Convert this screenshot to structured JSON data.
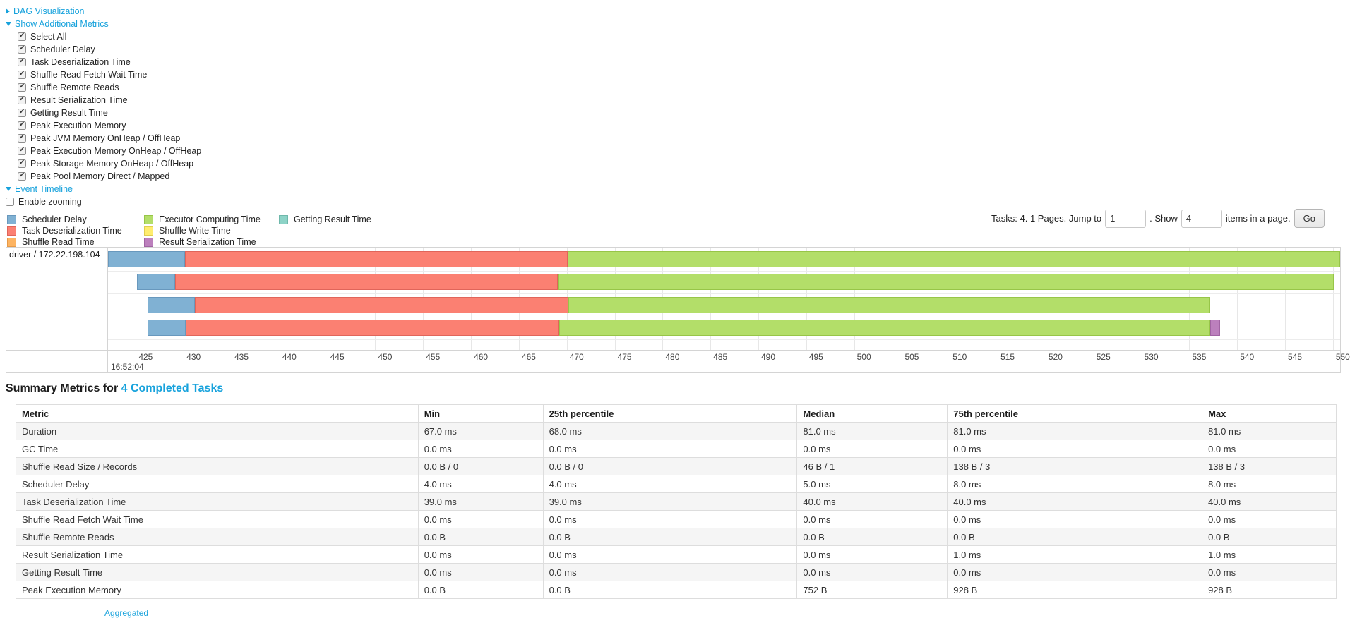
{
  "colors": {
    "link": "#17a2dc",
    "grid": "#e7e7e7",
    "chart_border": "#d4d4d4",
    "table_border": "#dddddd",
    "row_stripe": "#f5f5f5"
  },
  "sections": {
    "dag": {
      "label": "DAG Visualization",
      "state": "collapsed"
    },
    "metrics": {
      "label": "Show Additional Metrics",
      "state": "expanded"
    },
    "timeline": {
      "label": "Event Timeline",
      "state": "expanded"
    }
  },
  "metrics_checkboxes": [
    {
      "label": "Select All",
      "checked": true
    },
    {
      "label": "Scheduler Delay",
      "checked": true
    },
    {
      "label": "Task Deserialization Time",
      "checked": true
    },
    {
      "label": "Shuffle Read Fetch Wait Time",
      "checked": true
    },
    {
      "label": "Shuffle Remote Reads",
      "checked": true
    },
    {
      "label": "Result Serialization Time",
      "checked": true
    },
    {
      "label": "Getting Result Time",
      "checked": true
    },
    {
      "label": "Peak Execution Memory",
      "checked": true
    },
    {
      "label": "Peak JVM Memory OnHeap / OffHeap",
      "checked": true
    },
    {
      "label": "Peak Execution Memory OnHeap / OffHeap",
      "checked": true
    },
    {
      "label": "Peak Storage Memory OnHeap / OffHeap",
      "checked": true
    },
    {
      "label": "Peak Pool Memory Direct / Mapped",
      "checked": true
    }
  ],
  "enable_zooming": {
    "label": "Enable zooming",
    "checked": false
  },
  "legend": [
    {
      "type": "scheduler_delay",
      "label": "Scheduler Delay"
    },
    {
      "type": "task_deserialization",
      "label": "Task Deserialization Time"
    },
    {
      "type": "shuffle_read",
      "label": "Shuffle Read Time"
    },
    {
      "type": "executor_computing",
      "label": "Executor Computing Time"
    },
    {
      "type": "shuffle_write",
      "label": "Shuffle Write Time"
    },
    {
      "type": "result_serialization",
      "label": "Result Serialization Time"
    },
    {
      "type": "getting_result",
      "label": "Getting Result Time"
    }
  ],
  "pagination": {
    "tasks_text": "Tasks: 4. 1 Pages. Jump to",
    "jump_value": "1",
    "show_text": ". Show",
    "show_value": "4",
    "suffix_text": "items in a page.",
    "go_label": "Go"
  },
  "chart_data": {
    "type": "timeline",
    "group_label": "driver / 172.22.198.104",
    "x_axis": {
      "t0": 422.1,
      "t1": 550.75,
      "tick_start": 425,
      "tick_end": 550,
      "tick_step": 5,
      "unit": "ms",
      "major_label": "16:52:04"
    },
    "segment_colors": {
      "scheduler_delay": {
        "fill": "#80B1D3",
        "border": "#6898BD"
      },
      "task_deserialization": {
        "fill": "#FB8072",
        "border": "#E0655A"
      },
      "shuffle_read": {
        "fill": "#FDB462",
        "border": "#E69A48"
      },
      "executor_computing": {
        "fill": "#B3DE69",
        "border": "#97C548"
      },
      "shuffle_write": {
        "fill": "#FFED6F",
        "border": "#E0CE50"
      },
      "result_serialization": {
        "fill": "#BC80BD",
        "border": "#A164A3"
      },
      "getting_result": {
        "fill": "#8DD3C7",
        "border": "#6FB8AB"
      }
    },
    "tasks": [
      {
        "segments": [
          {
            "type": "scheduler_delay",
            "start": 422.1,
            "end": 430.1
          },
          {
            "type": "task_deserialization",
            "start": 430.1,
            "end": 470.1
          },
          {
            "type": "executor_computing",
            "start": 470.1,
            "end": 551.1
          }
        ]
      },
      {
        "segments": [
          {
            "type": "scheduler_delay",
            "start": 425.1,
            "end": 429.1
          },
          {
            "type": "task_deserialization",
            "start": 429.1,
            "end": 469.1
          },
          {
            "type": "executor_computing",
            "start": 469.1,
            "end": 550.1
          }
        ]
      },
      {
        "segments": [
          {
            "type": "scheduler_delay",
            "start": 426.2,
            "end": 431.2
          },
          {
            "type": "task_deserialization",
            "start": 431.2,
            "end": 470.2
          },
          {
            "type": "executor_computing",
            "start": 470.2,
            "end": 537.2
          }
        ]
      },
      {
        "segments": [
          {
            "type": "scheduler_delay",
            "start": 426.2,
            "end": 430.2
          },
          {
            "type": "task_deserialization",
            "start": 430.2,
            "end": 469.2
          },
          {
            "type": "executor_computing",
            "start": 469.2,
            "end": 537.2
          },
          {
            "type": "result_serialization",
            "start": 537.2,
            "end": 538.2
          }
        ]
      }
    ]
  },
  "summary": {
    "title_prefix": "Summary Metrics for ",
    "title_link": "4 Completed Tasks",
    "columns": [
      "Metric",
      "Min",
      "25th percentile",
      "Median",
      "75th percentile",
      "Max"
    ],
    "rows": [
      [
        "Duration",
        "67.0 ms",
        "68.0 ms",
        "81.0 ms",
        "81.0 ms",
        "81.0 ms"
      ],
      [
        "GC Time",
        "0.0 ms",
        "0.0 ms",
        "0.0 ms",
        "0.0 ms",
        "0.0 ms"
      ],
      [
        "Shuffle Read Size / Records",
        "0.0 B / 0",
        "0.0 B / 0",
        "46 B / 1",
        "138 B / 3",
        "138 B / 3"
      ],
      [
        "Scheduler Delay",
        "4.0 ms",
        "4.0 ms",
        "5.0 ms",
        "8.0 ms",
        "8.0 ms"
      ],
      [
        "Task Deserialization Time",
        "39.0 ms",
        "39.0 ms",
        "40.0 ms",
        "40.0 ms",
        "40.0 ms"
      ],
      [
        "Shuffle Read Fetch Wait Time",
        "0.0 ms",
        "0.0 ms",
        "0.0 ms",
        "0.0 ms",
        "0.0 ms"
      ],
      [
        "Shuffle Remote Reads",
        "0.0 B",
        "0.0 B",
        "0.0 B",
        "0.0 B",
        "0.0 B"
      ],
      [
        "Result Serialization Time",
        "0.0 ms",
        "0.0 ms",
        "0.0 ms",
        "1.0 ms",
        "1.0 ms"
      ],
      [
        "Getting Result Time",
        "0.0 ms",
        "0.0 ms",
        "0.0 ms",
        "0.0 ms",
        "0.0 ms"
      ],
      [
        "Peak Execution Memory",
        "0.0 B",
        "0.0 B",
        "752 B",
        "928 B",
        "928 B"
      ]
    ]
  },
  "next_section_stub": "Aggregated"
}
